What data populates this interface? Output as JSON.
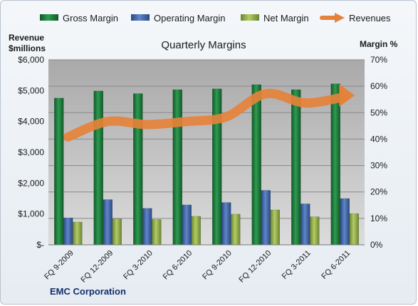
{
  "chart_data": {
    "type": "bar",
    "title": "Quarterly Margins",
    "company": "EMC Corporation",
    "ylabel_left": [
      "Revenue",
      "$millions"
    ],
    "ylabel_right": "Margin %",
    "categories": [
      "FQ 9-2009",
      "FQ 12-2009",
      "FQ 3-2010",
      "FQ 6-2010",
      "FQ 9-2010",
      "FQ 12-2010",
      "FQ 3-2011",
      "FQ 6-2011"
    ],
    "left_ticks": [
      "$-",
      "$1,000",
      "$2,000",
      "$3,000",
      "$4,000",
      "$5,000",
      "$6,000"
    ],
    "right_ticks": [
      "0%",
      "10%",
      "20%",
      "30%",
      "40%",
      "50%",
      "60%",
      "70%"
    ],
    "ylim_left": [
      0,
      6000
    ],
    "ylim_right": [
      0,
      70
    ],
    "grid": true,
    "legend_position": "top",
    "series": [
      {
        "name": "Gross Margin",
        "kind": "bar",
        "axis": "right",
        "color": "#1e7a3c",
        "values": [
          55.5,
          58.2,
          57.2,
          58.7,
          59.0,
          60.6,
          58.7,
          60.9
        ]
      },
      {
        "name": "Operating Margin",
        "kind": "bar",
        "axis": "right",
        "color": "#3f63a6",
        "values": [
          10.2,
          17.1,
          13.8,
          15.1,
          16.0,
          20.6,
          15.5,
          17.5
        ]
      },
      {
        "name": "Net Margin",
        "kind": "bar",
        "axis": "right",
        "color": "#8fae42",
        "values": [
          8.6,
          9.8,
          9.6,
          10.8,
          11.6,
          13.2,
          10.6,
          11.8
        ]
      },
      {
        "name": "Revenues",
        "kind": "line",
        "axis": "left",
        "color": "#e5823a",
        "values": [
          3500,
          4000,
          3900,
          4000,
          4150,
          4900,
          4600,
          4800
        ]
      }
    ]
  }
}
